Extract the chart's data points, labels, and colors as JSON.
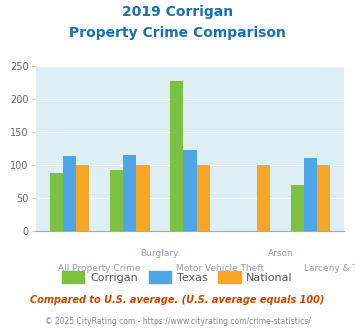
{
  "title_line1": "2019 Corrigan",
  "title_line2": "Property Crime Comparison",
  "title_color": "#1a6faf",
  "corrigan": [
    88,
    92,
    227,
    0,
    70
  ],
  "texas": [
    113,
    115,
    122,
    0,
    110
  ],
  "national": [
    100,
    100,
    100,
    100,
    100
  ],
  "corrigan_color": "#7dc142",
  "texas_color": "#4da6e8",
  "national_color": "#f5a623",
  "bg_color": "#ddeef5",
  "ylim": [
    0,
    250
  ],
  "yticks": [
    0,
    50,
    100,
    150,
    200,
    250
  ],
  "bar_width": 0.22,
  "legend_labels": [
    "Corrigan",
    "Texas",
    "National"
  ],
  "footnote1": "Compared to U.S. average. (U.S. average equals 100)",
  "footnote2": "© 2025 CityRating.com - https://www.cityrating.com/crime-statistics/",
  "footnote1_color": "#cc4400",
  "footnote2_color": "#888888",
  "top_labels": [
    [
      "Burglary",
      1.5
    ],
    [
      "Arson",
      3.5
    ]
  ],
  "bottom_labels": [
    [
      "All Property Crime",
      0.5
    ],
    [
      "Motor Vehicle Theft",
      2.5
    ],
    [
      "Larceny & Theft",
      4.5
    ]
  ]
}
